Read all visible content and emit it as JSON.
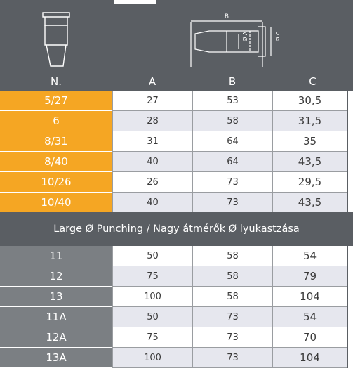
{
  "columns": {
    "n": "N.",
    "a": "A",
    "b": "B",
    "c": "C"
  },
  "diagram_labels": {
    "b": "B",
    "a": "Ø A",
    "c": "Ø C"
  },
  "rows_top": [
    {
      "n": "5/27",
      "a": "27",
      "b": "53",
      "c": "30,5"
    },
    {
      "n": "6",
      "a": "28",
      "b": "58",
      "c": "31,5"
    },
    {
      "n": "8/31",
      "a": "31",
      "b": "64",
      "c": "35"
    },
    {
      "n": "8/40",
      "a": "40",
      "b": "64",
      "c": "43,5"
    },
    {
      "n": "10/26",
      "a": "26",
      "b": "73",
      "c": "29,5"
    },
    {
      "n": "10/40",
      "a": "40",
      "b": "73",
      "c": "43,5"
    }
  ],
  "section_title": "Large Ø Punching / Nagy átmérők Ø lyukastzása",
  "rows_bottom": [
    {
      "n": "11",
      "a": "50",
      "b": "58",
      "c": "54"
    },
    {
      "n": "12",
      "a": "75",
      "b": "58",
      "c": "79"
    },
    {
      "n": "13",
      "a": "100",
      "b": "58",
      "c": "104"
    },
    {
      "n": "11A",
      "a": "50",
      "b": "73",
      "c": "54"
    },
    {
      "n": "12A",
      "a": "75",
      "b": "73",
      "c": "70"
    },
    {
      "n": "13A",
      "a": "100",
      "b": "73",
      "c": "104"
    }
  ],
  "colors": {
    "orange": "#f5a623",
    "dark": "#5a5e63",
    "grey": "#7b7f83",
    "light_row": "#e6e7ee",
    "white": "#ffffff"
  }
}
